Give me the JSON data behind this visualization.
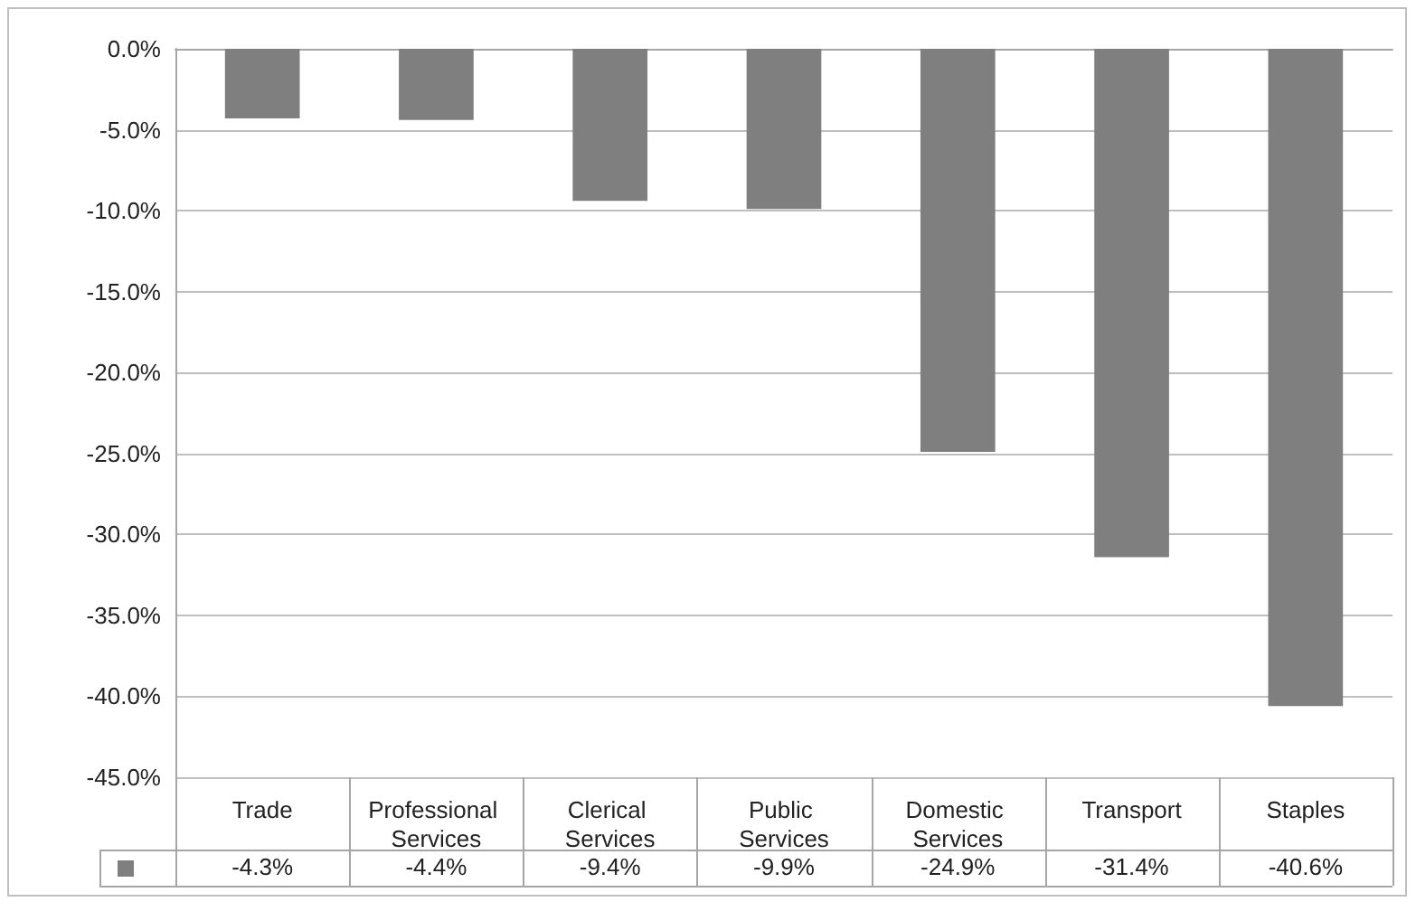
{
  "chart_data": {
    "type": "bar",
    "categories": [
      "Trade",
      "Professional Services",
      "Clerical Services",
      "Public Services",
      "Domestic Services",
      "Transport",
      "Staples"
    ],
    "values": [
      -4.3,
      -4.4,
      -9.4,
      -9.9,
      -24.9,
      -31.4,
      -40.6
    ],
    "color": "#7f7f80",
    "value_labels": [
      "-4.3%",
      "-4.4%",
      "-9.4%",
      "-9.9%",
      "-24.9%",
      "-31.4%",
      "-40.6%"
    ],
    "ylim": [
      -45,
      0
    ],
    "yticks": [
      {
        "value": 0,
        "label": "0.0%"
      },
      {
        "value": -5,
        "label": "-5.0%"
      },
      {
        "value": -10,
        "label": "-10.0%"
      },
      {
        "value": -15,
        "label": "-15.0%"
      },
      {
        "value": -20,
        "label": "-20.0%"
      },
      {
        "value": -25,
        "label": "-25.0%"
      },
      {
        "value": -30,
        "label": "-30.0%"
      },
      {
        "value": -35,
        "label": "-35.0%"
      },
      {
        "value": -40,
        "label": "-40.0%"
      },
      {
        "value": -45,
        "label": "-45.0%"
      }
    ],
    "grid": "y"
  }
}
